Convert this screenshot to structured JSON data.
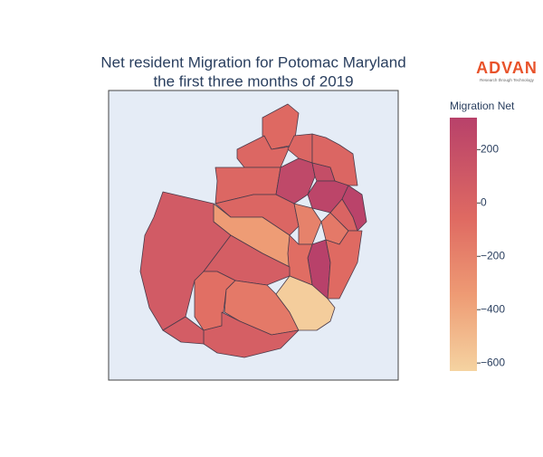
{
  "chart_data": {
    "type": "choropleth",
    "title": [
      "Net resident Migration for Potomac Maryland",
      "the first three months of 2019"
    ],
    "logo": {
      "text": "ADVAN",
      "subtext": "Research through Technology"
    },
    "colorbar_title": "Migration Net",
    "values": [
      -50,
      -30,
      -20,
      -20,
      -30,
      250,
      200,
      280,
      300,
      -20,
      -350,
      -200,
      -150,
      0,
      320,
      -60,
      -80,
      80,
      50,
      -90,
      -150,
      -600,
      40,
      60
    ],
    "zlim": [
      -630,
      320
    ],
    "zticks": [
      {
        "value": 200,
        "label": "200"
      },
      {
        "value": 0,
        "label": "0"
      },
      {
        "value": -200,
        "label": "−200"
      },
      {
        "value": -400,
        "label": "−400"
      },
      {
        "value": -600,
        "label": "−600"
      }
    ],
    "colorscale": [
      [
        0,
        "#f5d3a1"
      ],
      [
        0.3,
        "#ee9b74"
      ],
      [
        0.6,
        "#df6a62"
      ],
      [
        1,
        "#b8416a"
      ]
    ],
    "background": "#e5ecf6"
  }
}
